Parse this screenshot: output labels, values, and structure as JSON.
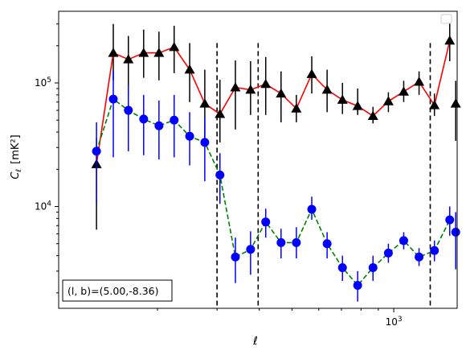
{
  "chart_data": {
    "type": "scatter",
    "title": "",
    "xlabel": "ℓ",
    "ylabel_main": "C",
    "ylabel_sub": "ℓ",
    "ylabel_unit": "[mK²]",
    "x_scale": "log",
    "y_scale": "log",
    "xlim": [
      102,
      1540
    ],
    "ylim": [
      1500,
      380000
    ],
    "x_tick_labels": [
      {
        "value": 1000,
        "base": "10",
        "exp": "3"
      }
    ],
    "y_tick_labels": [
      {
        "value": 10000,
        "base": "10",
        "exp": "4"
      },
      {
        "value": 100000,
        "base": "10",
        "exp": "5"
      }
    ],
    "grid": false,
    "legend": {
      "placement": "top-right",
      "entries": []
    },
    "vertical_lines": [
      300,
      397,
      1282
    ],
    "annotation": {
      "text": "(l, b)=(5.00,-8.36)",
      "placement": "bottom-left"
    },
    "series": [
      {
        "line_color": "#ff0000",
        "line_style": "solid",
        "marker": "triangle",
        "marker_color": "#000000",
        "errorbar_color": "#000000",
        "x": [
          132,
          148,
          164,
          182,
          202,
          224,
          249,
          276,
          306,
          340,
          377,
          418,
          464,
          515,
          572,
          635,
          705,
          782,
          868,
          964,
          1070,
          1188,
          1319,
          1464
        ],
        "y": [
          22000,
          175000,
          155000,
          175000,
          175000,
          195000,
          128000,
          68000,
          56000,
          92000,
          88000,
          98000,
          82000,
          62000,
          118000,
          88000,
          73000,
          65000,
          54000,
          71000,
          85000,
          102000,
          66000,
          220000
        ],
        "err_low": [
          6500,
          105000,
          80000,
          110000,
          105000,
          120000,
          70000,
          33000,
          33000,
          42000,
          55000,
          55000,
          48000,
          48000,
          82000,
          58000,
          56000,
          55000,
          47000,
          58000,
          70000,
          80000,
          54000,
          150000
        ],
        "err_high": [
          36000,
          300000,
          240000,
          270000,
          260000,
          290000,
          210000,
          128000,
          106000,
          152000,
          150000,
          162000,
          124000,
          80000,
          164000,
          128000,
          100000,
          90000,
          64000,
          84000,
          104000,
          124000,
          82000,
          320000
        ],
        "last_point": {
          "x": 1525,
          "y": 68000,
          "err_low": 34000,
          "err_high": 104000
        }
      },
      {
        "line_color": "#008000",
        "line_style": "dashed",
        "marker": "circle",
        "marker_color": "#0000ff",
        "errorbar_color": "#0000ff",
        "x": [
          132,
          148,
          164,
          182,
          202,
          224,
          249,
          276,
          306,
          340,
          377,
          418,
          464,
          515,
          572,
          635,
          705,
          782,
          868,
          964,
          1070,
          1188,
          1319,
          1464
        ],
        "y": [
          28000,
          74000,
          60000,
          51000,
          45000,
          50000,
          37000,
          33000,
          18000,
          3900,
          4500,
          7500,
          5100,
          5100,
          9500,
          5000,
          3200,
          2300,
          3200,
          4200,
          5300,
          3900,
          4400,
          7800
        ],
        "err_low": [
          10500,
          25000,
          28000,
          26000,
          24000,
          25000,
          21500,
          16000,
          10500,
          2400,
          2800,
          5600,
          3800,
          3800,
          7800,
          3800,
          2500,
          1700,
          2500,
          3500,
          4500,
          3300,
          3600,
          5800
        ],
        "err_high": [
          48000,
          125000,
          96000,
          80000,
          72000,
          80000,
          58000,
          53000,
          27000,
          5600,
          6300,
          9600,
          6600,
          6800,
          12000,
          6200,
          4000,
          3000,
          4000,
          5000,
          6200,
          4600,
          5300,
          10000
        ],
        "last_point": {
          "x": 1525,
          "y": 6200,
          "err_low": 3100,
          "err_high": 9000
        }
      }
    ]
  }
}
